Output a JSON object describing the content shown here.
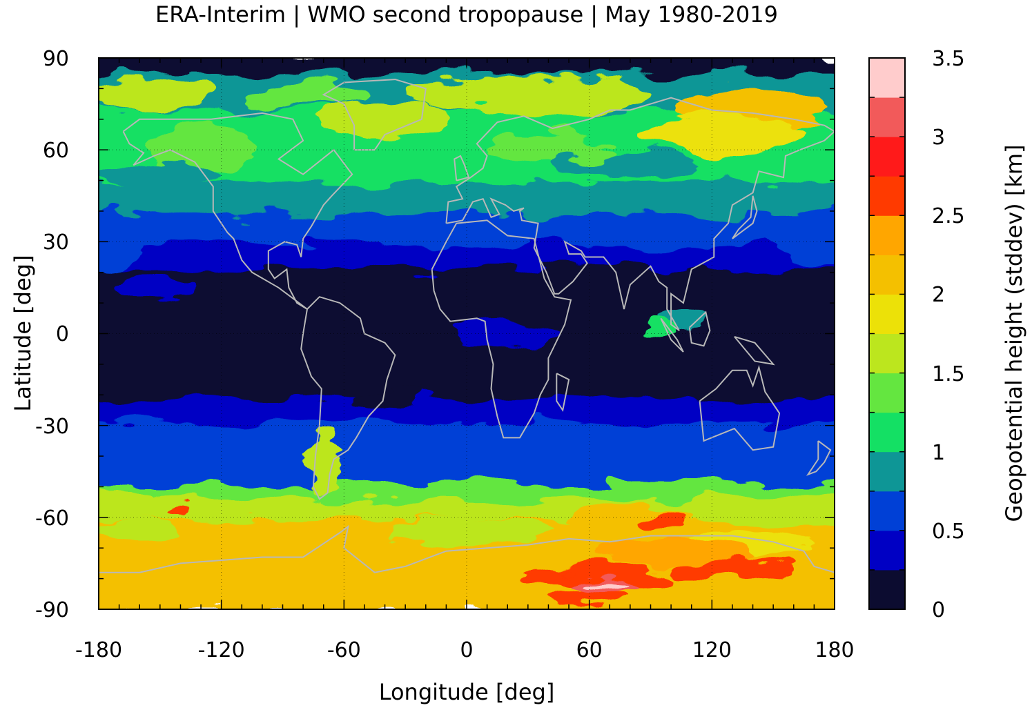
{
  "title": "ERA-Interim | WMO second tropopause | May 1980-2019",
  "map": {
    "xlabel": "Longitude [deg]",
    "ylabel": "Latitude [deg]",
    "xlim": [
      -180,
      180
    ],
    "ylim": [
      -90,
      90
    ],
    "x_ticks": [
      "-180",
      "-120",
      "-60",
      "0",
      "60",
      "120",
      "180"
    ],
    "y_ticks": [
      "90",
      "60",
      "30",
      "0",
      "-30",
      "-60",
      "-90"
    ],
    "grid": "dotted",
    "coastline_color": "#b8b8b8"
  },
  "colorbar": {
    "label": "Geopotential height (stddev) [km]",
    "tick_labels": [
      "0",
      "0.5",
      "1",
      "1.5",
      "2",
      "2.5",
      "3",
      "3.5"
    ],
    "range": [
      0,
      3.5
    ],
    "step": 0.25,
    "colors": [
      "#0c0c30",
      "#0000c4",
      "#0040d6",
      "#0e9696",
      "#14e064",
      "#64e640",
      "#bce61e",
      "#ece108",
      "#f4c000",
      "#ffa600",
      "#ff3a00",
      "#ff1a1a",
      "#f25a5a",
      "#ffcccc"
    ]
  },
  "chart_data": {
    "type": "heatmap",
    "title": "ERA-Interim | WMO second tropopause | May 1980-2019",
    "xlabel": "Longitude [deg]",
    "ylabel": "Latitude [deg]",
    "xlim": [
      -180,
      180
    ],
    "ylim": [
      -90,
      90
    ],
    "colorbar_label": "Geopotential height (stddev) [km]",
    "levels_km": [
      0,
      0.25,
      0.5,
      0.75,
      1.0,
      1.25,
      1.5,
      1.75,
      2.0,
      2.25,
      2.5,
      2.75,
      3.0,
      3.25,
      3.5
    ],
    "zonal_bands": [
      {
        "lat": [
          84,
          90
        ],
        "value": 0.1
      },
      {
        "lat": [
          72,
          84
        ],
        "value": 0.9
      },
      {
        "lat": [
          48,
          72
        ],
        "value": 1.1
      },
      {
        "lat": [
          38,
          48
        ],
        "value": 0.85
      },
      {
        "lat": [
          28,
          38
        ],
        "value": 0.6
      },
      {
        "lat": [
          20,
          28
        ],
        "value": 0.4
      },
      {
        "lat": [
          -22,
          20
        ],
        "value": 0.1
      },
      {
        "lat": [
          -30,
          -22
        ],
        "value": 0.4
      },
      {
        "lat": [
          -40,
          -30
        ],
        "value": 0.6
      },
      {
        "lat": [
          -50,
          -40
        ],
        "value": 0.6
      },
      {
        "lat": [
          -55,
          -50
        ],
        "value": 1.3
      },
      {
        "lat": [
          -62,
          -55
        ],
        "value": 1.6
      },
      {
        "lat": [
          -72,
          -62
        ],
        "value": 2.0
      },
      {
        "lat": [
          -80,
          -72
        ],
        "value": 2.2
      },
      {
        "lat": [
          -90,
          -80
        ],
        "value": 2.2
      }
    ],
    "max_region": {
      "lon": [
        55,
        80
      ],
      "lat": [
        -84,
        -80
      ],
      "value": 3.4
    }
  }
}
